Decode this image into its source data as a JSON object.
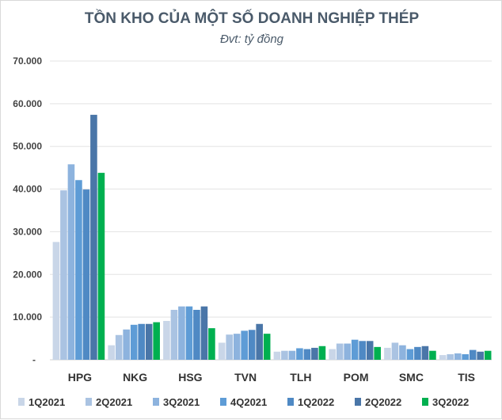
{
  "chart_data": {
    "type": "bar",
    "title": "TỒN KHO CỦA MỘT SỐ DOANH NGHIỆP THÉP",
    "subtitle": "Đvt: tỷ đồng",
    "categories": [
      "HPG",
      "NKG",
      "HSG",
      "TVN",
      "TLH",
      "POM",
      "SMC",
      "TIS"
    ],
    "ylim": [
      0,
      70000
    ],
    "yticks": [
      "-",
      "10.000",
      "20.000",
      "30.000",
      "40.000",
      "50.000",
      "60.000",
      "70.000"
    ],
    "grid": true,
    "legend_position": "bottom",
    "series": [
      {
        "name": "1Q2021",
        "color": "#c9d6e8",
        "values": [
          27600,
          3400,
          9100,
          4000,
          1900,
          2500,
          2800,
          1100
        ]
      },
      {
        "name": "2Q2021",
        "color": "#aac3e2",
        "values": [
          39700,
          5800,
          11700,
          5900,
          2100,
          3800,
          4000,
          1300
        ]
      },
      {
        "name": "3Q2021",
        "color": "#8db3de",
        "values": [
          45800,
          7100,
          12500,
          6100,
          2100,
          3800,
          3400,
          1500
        ]
      },
      {
        "name": "4Q2021",
        "color": "#5e9cd6",
        "values": [
          42100,
          8200,
          12500,
          6800,
          2700,
          4700,
          2500,
          1300
        ]
      },
      {
        "name": "1Q2022",
        "color": "#4f89c4",
        "values": [
          39900,
          8400,
          11700,
          7000,
          2500,
          4400,
          3000,
          2300
        ]
      },
      {
        "name": "2Q2022",
        "color": "#4a76a8",
        "values": [
          57400,
          8400,
          12500,
          8400,
          2800,
          4400,
          3200,
          1900
        ]
      },
      {
        "name": "3Q2022",
        "color": "#00b050",
        "values": [
          43800,
          8800,
          7400,
          6100,
          3200,
          3000,
          2100,
          2100
        ]
      }
    ]
  }
}
